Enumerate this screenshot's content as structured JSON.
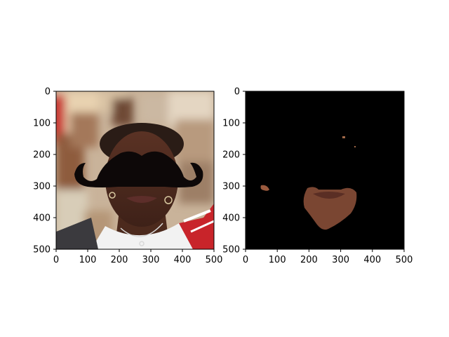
{
  "figure": {
    "background": "#ffffff",
    "subplot_count": 2
  },
  "chart_data": [
    {
      "type": "image",
      "panel": "left",
      "content": "photo of a person with a black mustache overlay",
      "xlim": [
        0,
        500
      ],
      "ylim": [
        500,
        0
      ],
      "x_ticks": [
        0,
        100,
        200,
        300,
        400,
        500
      ],
      "y_ticks": [
        0,
        100,
        200,
        300,
        400,
        500
      ],
      "x_tick_labels": [
        "0",
        "100",
        "200",
        "300",
        "400",
        "500"
      ],
      "y_tick_labels": [
        "0",
        "100",
        "200",
        "300",
        "400",
        "500"
      ],
      "overlay_color": "#0d0808"
    },
    {
      "type": "image",
      "panel": "right",
      "content": "segmented skin region on black background",
      "xlim": [
        0,
        500
      ],
      "ylim": [
        500,
        0
      ],
      "x_ticks": [
        0,
        100,
        200,
        300,
        400,
        500
      ],
      "y_ticks": [
        0,
        100,
        200,
        300,
        400,
        500
      ],
      "x_tick_labels": [
        "0",
        "100",
        "200",
        "300",
        "400",
        "500"
      ],
      "y_tick_labels": [
        "0",
        "100",
        "200",
        "300",
        "400",
        "500"
      ],
      "background_color": "#000000",
      "skin_color": "#7a4632"
    }
  ]
}
